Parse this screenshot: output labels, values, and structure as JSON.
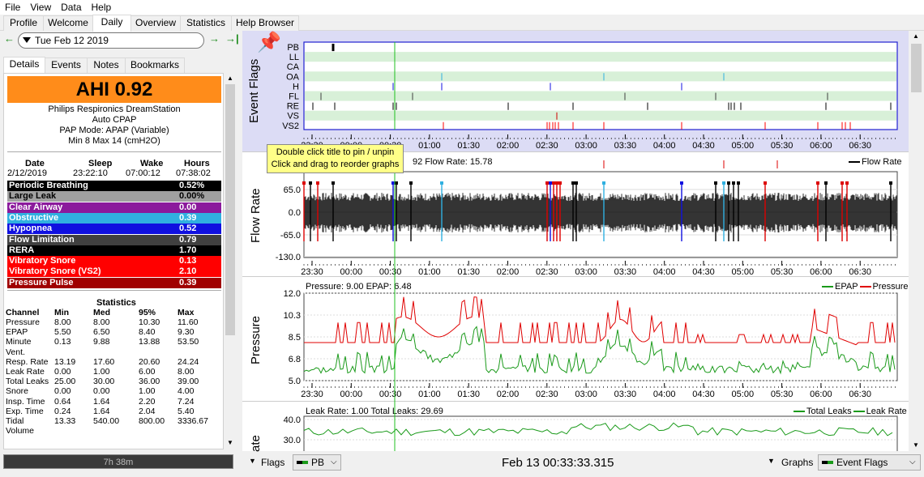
{
  "menu": [
    "File",
    "View",
    "Data",
    "Help"
  ],
  "tabs": [
    "Profile",
    "Welcome",
    "Daily",
    "Overview",
    "Statistics",
    "Help Browser"
  ],
  "date": "Tue Feb 12 2019",
  "subtabs": [
    "Details",
    "Events",
    "Notes",
    "Bookmarks"
  ],
  "ahi": "AHI 0.92",
  "device": [
    "Philips Respironics DreamStation",
    "Auto CPAP",
    "PAP Mode: APAP (Variable)",
    "Min 8 Max 14 (cmH2O)"
  ],
  "session": {
    "headers": [
      "Date",
      "Sleep",
      "Wake",
      "Hours"
    ],
    "values": [
      "2/12/2019",
      "23:22:10",
      "07:00:12",
      "07:38:02"
    ]
  },
  "events": [
    {
      "name": "Periodic Breathing",
      "value": "0.52%",
      "color": "#000000"
    },
    {
      "name": "Large Leak",
      "value": "0.00%",
      "color": "#a0a0a0",
      "dark": true
    },
    {
      "name": "Clear Airway",
      "value": "0.00",
      "color": "#8b1a9c"
    },
    {
      "name": "Obstructive",
      "value": "0.39",
      "color": "#30b0e0"
    },
    {
      "name": "Hypopnea",
      "value": "0.52",
      "color": "#1010e0"
    },
    {
      "name": "Flow Limitation",
      "value": "0.79",
      "color": "#404040"
    },
    {
      "name": "RERA",
      "value": "1.70",
      "color": "#000000"
    },
    {
      "name": "Vibratory Snore",
      "value": "0.13",
      "color": "#ff0000"
    },
    {
      "name": "Vibratory Snore (VS2)",
      "value": "2.10",
      "color": "#ff0000"
    },
    {
      "name": "Pressure Pulse",
      "value": "0.39",
      "color": "#a00000"
    }
  ],
  "statistics": {
    "title": "Statistics",
    "headers": [
      "Channel",
      "Min",
      "Med",
      "95%",
      "Max"
    ],
    "rows": [
      [
        "Pressure",
        "8.00",
        "8.00",
        "10.30",
        "11.60"
      ],
      [
        "EPAP",
        "5.50",
        "6.50",
        "8.40",
        "9.30"
      ],
      [
        "Minute",
        "0.13",
        "9.88",
        "13.88",
        "53.50"
      ],
      [
        "Vent.",
        "",
        "",
        "",
        ""
      ],
      [
        "Resp. Rate",
        "13.19",
        "17.60",
        "20.60",
        "24.24"
      ],
      [
        "Leak Rate",
        "0.00",
        "1.00",
        "6.00",
        "8.00"
      ],
      [
        "Total Leaks",
        "25.00",
        "30.00",
        "36.00",
        "39.00"
      ],
      [
        "Snore",
        "0.00",
        "0.00",
        "1.00",
        "4.00"
      ],
      [
        "Insp. Time",
        "0.64",
        "1.64",
        "2.20",
        "7.24"
      ],
      [
        "Exp. Time",
        "0.24",
        "1.64",
        "2.04",
        "5.40"
      ],
      [
        "Tidal",
        "13.33",
        "540.00",
        "800.00",
        "3336.67"
      ],
      [
        "Volume",
        "",
        "",
        "",
        ""
      ]
    ]
  },
  "duration": "7h 38m",
  "tooltip": [
    "Double click title to pin / unpin",
    "Click and drag to reorder graphs"
  ],
  "time_ticks": [
    "23:30",
    "00:00",
    "00:30",
    "01:00",
    "01:30",
    "02:00",
    "02:30",
    "03:00",
    "03:30",
    "04:00",
    "04:30",
    "05:00",
    "05:30",
    "06:00",
    "06:30"
  ],
  "event_flags": {
    "ylabel": "Event Flags",
    "channels": [
      "PB",
      "LL",
      "CA",
      "OA",
      "H",
      "FL",
      "RE",
      "VS",
      "VS2"
    ]
  },
  "flow": {
    "ylabel": "Flow Rate",
    "title": "92 Flow Rate: 15.78",
    "legend": "Flow Rate",
    "yticks": [
      "65.0",
      "0.0",
      "-65.0",
      "-130.0"
    ]
  },
  "pressure": {
    "ylabel": "Pressure",
    "title": "Pressure: 9.00 EPAP: 6.48",
    "legend": [
      "EPAP",
      "Pressure"
    ],
    "yticks": [
      "12.0",
      "10.3",
      "8.5",
      "6.8",
      "5.0"
    ]
  },
  "leak": {
    "ylabel": "ate",
    "title": "Leak Rate: 1.00 Total Leaks: 29.69",
    "legend": [
      "Total Leaks",
      "Leak Rate"
    ],
    "yticks": [
      "40.0",
      "30.0"
    ]
  },
  "footer": {
    "flags_label": "Flags",
    "flags_value": "PB",
    "cursor_time": "Feb 13 00:33:33.315",
    "graphs_label": "Graphs",
    "graphs_value": "Event Flags"
  },
  "colors": {
    "epap": "#1a9a1a",
    "pressure": "#e00000",
    "flow": "#000000",
    "cursor": "#20c020"
  }
}
